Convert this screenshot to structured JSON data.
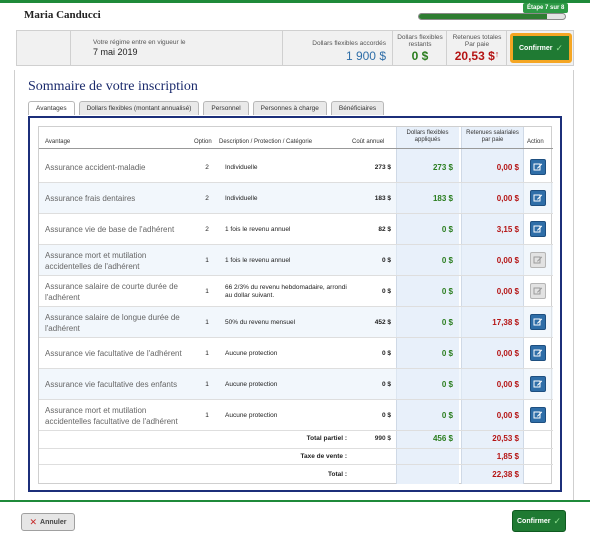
{
  "header": {
    "user_name": "Maria Canducci",
    "step_label": "Étape 7 sur 8",
    "progress": 0.875
  },
  "summary": {
    "effective_label": "Votre régime entre en vigueur le",
    "effective_date": "7 mai 2019",
    "granted_label": "Dollars flexibles accordés",
    "granted_value": "1 900 $",
    "remaining_label_1": "Dollars flexibles",
    "remaining_label_2": "restants",
    "remaining_value": "0 $",
    "deductions_label_1": "Retenues totales",
    "deductions_label_2": "Par paie",
    "deductions_value": "20,53 $",
    "deductions_arrow": "↑",
    "confirm_label": "Confirmer"
  },
  "page_title": "Sommaire de votre inscription",
  "tabs": [
    {
      "label": "Avantages"
    },
    {
      "label": "Dollars flexibles (montant annualisé)"
    },
    {
      "label": "Personnel"
    },
    {
      "label": "Personnes à charge"
    },
    {
      "label": "Bénéficiaires"
    }
  ],
  "table": {
    "headers": {
      "benefit": "Avantage",
      "option": "Option",
      "description": "Description / Protection / Catégorie",
      "cost": "Coût annuel",
      "flex_1": "Dollars flexibles",
      "flex_2": "appliqués",
      "ret_1": "Retenues salariales",
      "ret_2": "par paie",
      "action": "Action"
    },
    "rows": [
      {
        "name": "Assurance accident-maladie",
        "option": "2",
        "description": "Individuelle",
        "cost": "273 $",
        "flex": "273 $",
        "deduction": "0,00 $",
        "editable": true
      },
      {
        "name": "Assurance frais dentaires",
        "option": "2",
        "description": "Individuelle",
        "cost": "183 $",
        "flex": "183 $",
        "deduction": "0,00 $",
        "editable": true
      },
      {
        "name": "Assurance vie de base de l'adhérent",
        "option": "2",
        "description": "1 fois le revenu annuel",
        "cost": "82 $",
        "flex": "0 $",
        "deduction": "3,15 $",
        "editable": true
      },
      {
        "name": "Assurance mort et mutilation accidentelles de l'adhérent",
        "option": "1",
        "description": "1 fois le revenu annuel",
        "cost": "0 $",
        "flex": "0 $",
        "deduction": "0,00 $",
        "editable": false
      },
      {
        "name": "Assurance salaire de courte durée de l'adhérent",
        "option": "1",
        "description": "66 2/3% du revenu hebdomadaire, arrondi au dollar suivant.",
        "cost": "0 $",
        "flex": "0 $",
        "deduction": "0,00 $",
        "editable": false
      },
      {
        "name": "Assurance salaire de longue durée de l'adhérent",
        "option": "1",
        "description": "50% du revenu mensuel",
        "cost": "452 $",
        "flex": "0 $",
        "deduction": "17,38 $",
        "editable": true
      },
      {
        "name": "Assurance vie facultative de l'adhérent",
        "option": "1",
        "description": "Aucune protection",
        "cost": "0 $",
        "flex": "0 $",
        "deduction": "0,00 $",
        "editable": true
      },
      {
        "name": "Assurance vie facultative des enfants",
        "option": "1",
        "description": "Aucune protection",
        "cost": "0 $",
        "flex": "0 $",
        "deduction": "0,00 $",
        "editable": true
      },
      {
        "name": "Assurance mort et mutilation accidentelles facultative de l'adhérent",
        "option": "1",
        "description": "Aucune protection",
        "cost": "0 $",
        "flex": "0 $",
        "deduction": "0,00 $",
        "editable": true
      }
    ],
    "subtotal": {
      "label": "Total partiel :",
      "cost": "990 $",
      "flex": "456 $",
      "deduction": "20,53 $"
    },
    "tax": {
      "label": "Taxe de vente :",
      "deduction": "1,85 $"
    },
    "total": {
      "label": "Total :",
      "deduction": "22,38 $"
    }
  },
  "footer": {
    "cancel_label": "Annuler",
    "confirm_label": "Confirmer"
  },
  "colors": {
    "brand_green": "#1f7a33",
    "accent_orange": "#f5a623",
    "navy": "#1c2f7a",
    "flex_green": "#2a7d1e",
    "deduction_red": "#b51414"
  }
}
